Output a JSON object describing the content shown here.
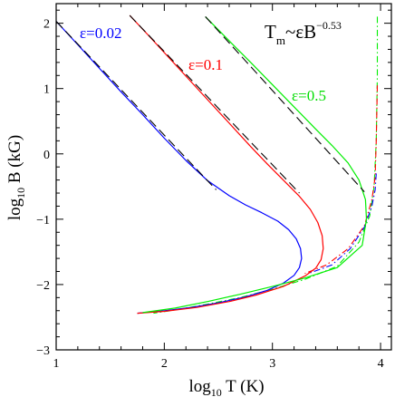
{
  "chart_data": {
    "type": "line",
    "title": "",
    "xlabel": {
      "prefix": "log",
      "sub": "10",
      "suffix": " T (K)"
    },
    "ylabel": {
      "prefix": "log",
      "sub": "10",
      "suffix": " B (kG)"
    },
    "xlim": [
      1,
      4.1
    ],
    "ylim": [
      -3,
      2.3
    ],
    "x_ticks": [
      1,
      2,
      3,
      4
    ],
    "x_tick_labels": [
      "1",
      "2",
      "3",
      "4"
    ],
    "y_ticks": [
      -3,
      -2,
      -1,
      0,
      1,
      2
    ],
    "y_tick_labels": [
      "−3",
      "−2",
      "−1",
      "0",
      "1",
      "2"
    ],
    "grid": false,
    "annotation": {
      "base": "T",
      "base_sub": "m",
      "relation": "~εB",
      "exponent": "−0.53"
    },
    "series": [
      {
        "name": "ε=0.02",
        "color": "#0000ff",
        "x": [
          1.0,
          1.2,
          1.4,
          1.6,
          1.8,
          2.0,
          2.2,
          2.4,
          2.6,
          2.75,
          2.9,
          3.05,
          3.15,
          3.22,
          3.26,
          3.27,
          3.25,
          3.2,
          3.1,
          2.95,
          2.75,
          2.5,
          2.25,
          2.0,
          1.75
        ],
        "y": [
          2.03,
          1.67,
          1.31,
          0.95,
          0.6,
          0.24,
          -0.1,
          -0.41,
          -0.64,
          -0.78,
          -0.9,
          -1.03,
          -1.16,
          -1.3,
          -1.45,
          -1.6,
          -1.74,
          -1.86,
          -1.98,
          -2.09,
          -2.19,
          -2.28,
          -2.35,
          -2.4,
          -2.44
        ]
      },
      {
        "name": "ε=0.1",
        "color": "#ff0000",
        "x": [
          1.68,
          1.85,
          2.0,
          2.2,
          2.4,
          2.6,
          2.8,
          2.95,
          3.1,
          3.25,
          3.35,
          3.42,
          3.46,
          3.47,
          3.45,
          3.4,
          3.3,
          3.1,
          2.85,
          2.6,
          2.3,
          2.0,
          1.75
        ],
        "y": [
          2.12,
          1.82,
          1.55,
          1.19,
          0.83,
          0.47,
          0.11,
          -0.15,
          -0.4,
          -0.65,
          -0.85,
          -1.05,
          -1.25,
          -1.45,
          -1.62,
          -1.75,
          -1.87,
          -2.03,
          -2.16,
          -2.26,
          -2.35,
          -2.41,
          -2.44
        ]
      },
      {
        "name": "ε=0.5",
        "color": "#00ee00",
        "x": [
          2.38,
          2.6,
          2.8,
          3.0,
          3.2,
          3.4,
          3.55,
          3.7,
          3.8,
          3.86,
          3.87,
          3.83,
          3.6,
          3.3,
          3.0,
          2.7,
          2.4,
          2.1,
          1.8
        ],
        "y": [
          2.1,
          1.73,
          1.4,
          1.06,
          0.72,
          0.38,
          0.13,
          -0.14,
          -0.4,
          -0.7,
          -1.0,
          -1.4,
          -1.74,
          -1.9,
          -2.03,
          -2.15,
          -2.26,
          -2.36,
          -2.43
        ]
      }
    ],
    "asymptotes": [
      {
        "color": "#000000",
        "dash": "long-dash",
        "x": [
          1.0,
          2.48
        ],
        "y": [
          2.03,
          -0.55
        ]
      },
      {
        "color": "#000000",
        "dash": "long-dash",
        "x": [
          1.68,
          3.25
        ],
        "y": [
          2.12,
          -0.6
        ]
      },
      {
        "color": "#000000",
        "dash": "long-dash",
        "x": [
          2.38,
          3.85
        ],
        "y": [
          2.1,
          -0.58
        ]
      }
    ],
    "dash_dot_curves": [
      {
        "color": "#00ee00",
        "x": [
          3.97,
          3.97,
          3.96,
          3.94,
          3.9,
          3.8,
          3.6,
          3.3,
          3.0,
          2.7,
          2.4,
          2.1,
          1.9
        ],
        "y": [
          2.1,
          1.2,
          0.2,
          -0.5,
          -0.95,
          -1.35,
          -1.72,
          -1.92,
          -2.07,
          -2.2,
          -2.3,
          -2.39,
          -2.44
        ]
      },
      {
        "color": "#ff0000",
        "x": [
          3.97,
          3.96,
          3.95,
          3.92,
          3.85,
          3.7,
          3.5,
          3.3
        ],
        "y": [
          1.05,
          0.2,
          -0.35,
          -0.7,
          -1.1,
          -1.45,
          -1.7,
          -1.83
        ]
      },
      {
        "color": "#0000ff",
        "x": [
          3.96,
          3.95,
          3.92,
          3.85,
          3.72,
          3.55,
          3.35
        ],
        "y": [
          -0.3,
          -0.55,
          -0.8,
          -1.12,
          -1.45,
          -1.7,
          -1.82
        ]
      }
    ]
  }
}
